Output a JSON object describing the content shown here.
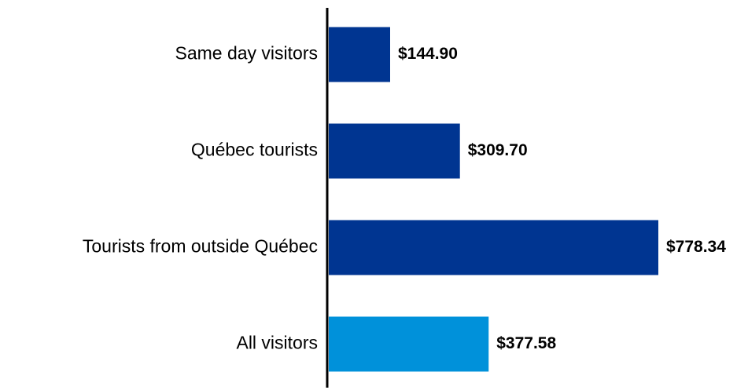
{
  "chart_data": {
    "type": "bar",
    "orientation": "horizontal",
    "categories": [
      "Same day visitors",
      "Québec tourists",
      "Tourists from outside Québec",
      "All visitors"
    ],
    "values": [
      144.9,
      309.7,
      778.34,
      377.58
    ],
    "value_labels": [
      "$144.90",
      "$309.70",
      "$778.34",
      "$377.58"
    ],
    "colors": [
      "#003591",
      "#003591",
      "#003591",
      "#0091da"
    ]
  }
}
